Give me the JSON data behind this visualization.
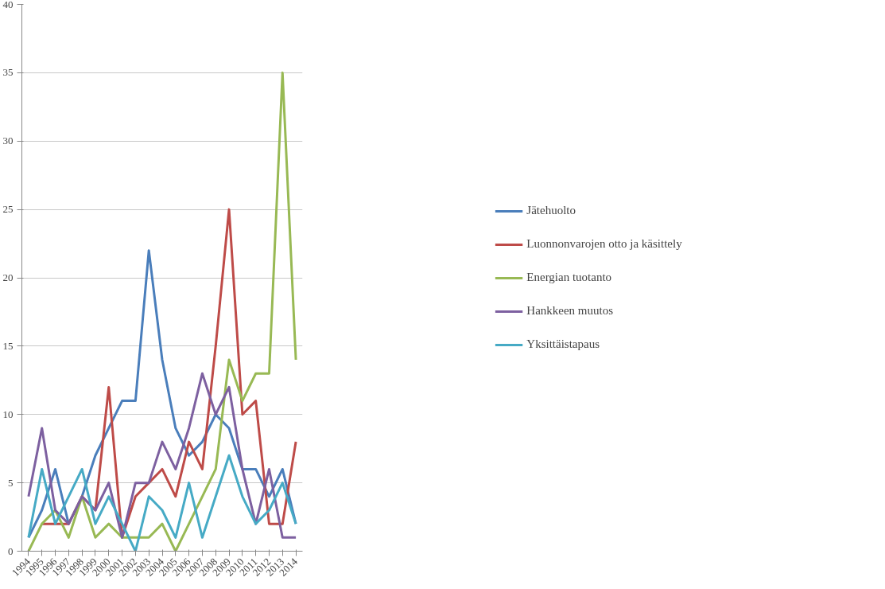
{
  "chart_data": {
    "type": "line",
    "categories": [
      "1994",
      "1995",
      "1996",
      "1997",
      "1998",
      "1999",
      "2000",
      "2001",
      "2002",
      "2003",
      "2004",
      "2005",
      "2006",
      "2007",
      "2008",
      "2009",
      "2010",
      "2011",
      "2012",
      "2013",
      "2014"
    ],
    "series": [
      {
        "name": "Jätehuolto",
        "color": "#4a7ebb",
        "values": [
          1,
          3,
          6,
          2,
          4,
          7,
          9,
          11,
          11,
          22,
          14,
          9,
          7,
          8,
          10,
          9,
          6,
          6,
          4,
          6,
          2
        ]
      },
      {
        "name": "Luonnonvarojen otto ja käsittely",
        "color": "#be4b48",
        "values": [
          null,
          2,
          2,
          2,
          4,
          3,
          12,
          1,
          4,
          5,
          6,
          4,
          8,
          6,
          15,
          25,
          10,
          11,
          2,
          2,
          8
        ]
      },
      {
        "name": "Energian tuotanto",
        "color": "#98b954",
        "values": [
          0,
          2,
          3,
          1,
          4,
          1,
          2,
          1,
          1,
          1,
          2,
          0,
          2,
          4,
          6,
          14,
          11,
          13,
          13,
          35,
          14
        ]
      },
      {
        "name": "Hankkeen muutos",
        "color": "#7d60a0",
        "values": [
          4,
          9,
          3,
          2,
          4,
          3,
          5,
          1,
          5,
          5,
          8,
          6,
          9,
          13,
          10,
          12,
          6,
          2,
          6,
          1,
          1
        ]
      },
      {
        "name": "Yksittäistapaus",
        "color": "#46aac5",
        "values": [
          1,
          6,
          2,
          4,
          6,
          2,
          4,
          2,
          0,
          4,
          3,
          1,
          5,
          1,
          4,
          7,
          4,
          2,
          3,
          5,
          2
        ]
      }
    ],
    "ylim": [
      0,
      40
    ],
    "yticks": [
      0,
      5,
      10,
      15,
      20,
      25,
      30,
      35,
      40
    ],
    "grid": "y",
    "legend": "right",
    "line_style": "solid",
    "marker": "none"
  }
}
